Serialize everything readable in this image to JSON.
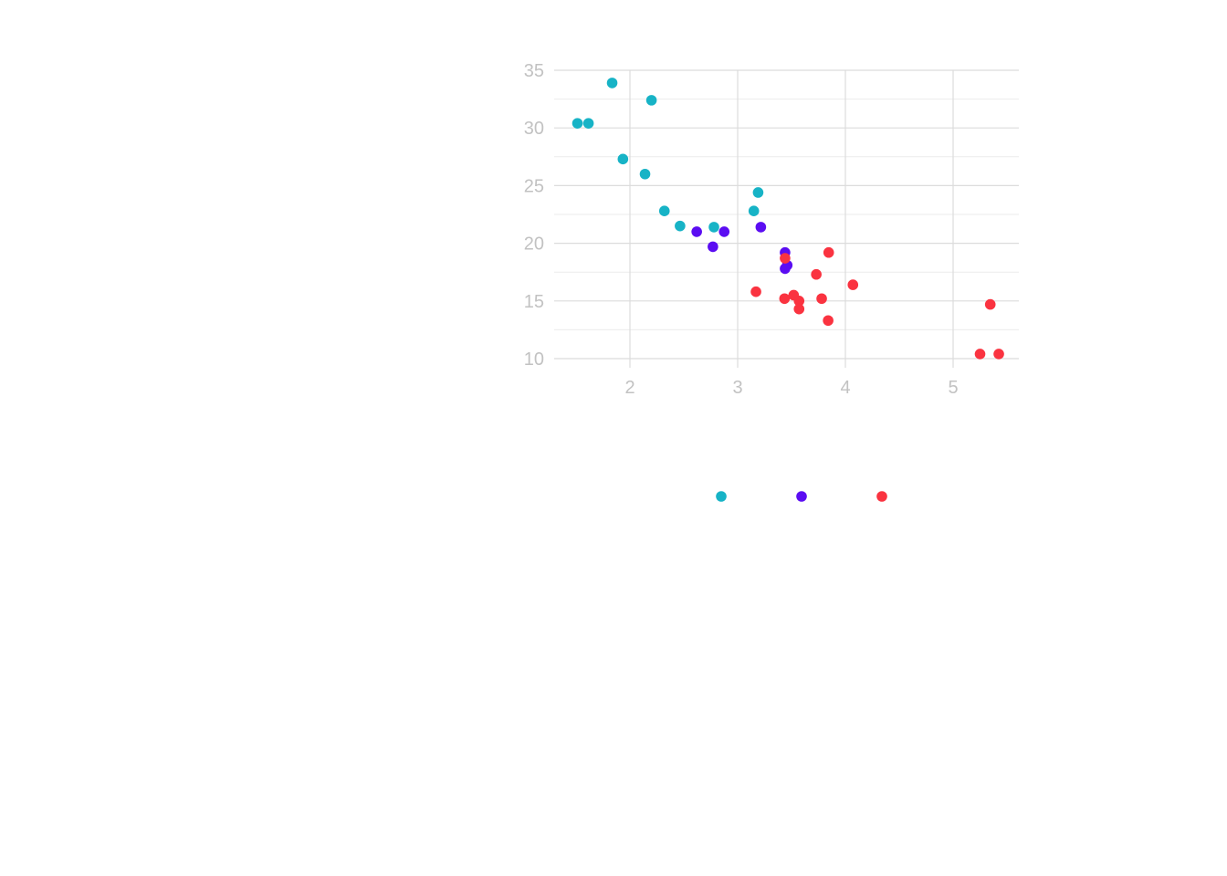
{
  "chart_data": {
    "type": "scatter",
    "title": "",
    "xlabel": "",
    "ylabel": "",
    "xlim": [
      1.3,
      5.6
    ],
    "ylim": [
      10,
      35
    ],
    "x_ticks": [
      2,
      3,
      4,
      5
    ],
    "y_ticks": [
      10,
      15,
      20,
      25,
      30,
      35
    ],
    "x_tick_labels": [
      "2",
      "3",
      "4",
      "5"
    ],
    "y_tick_labels": [
      "10",
      "15",
      "20",
      "25",
      "30",
      "35"
    ],
    "grid": true,
    "legend": "bottom",
    "series": [
      {
        "color": "#17b3c6",
        "points": [
          [
            1.513,
            30.4
          ],
          [
            1.615,
            30.4
          ],
          [
            1.835,
            33.9
          ],
          [
            1.935,
            27.3
          ],
          [
            2.14,
            26.0
          ],
          [
            2.2,
            32.4
          ],
          [
            2.32,
            22.8
          ],
          [
            2.465,
            21.5
          ],
          [
            2.78,
            21.4
          ],
          [
            3.15,
            22.8
          ],
          [
            3.19,
            24.4
          ]
        ]
      },
      {
        "color": "#5b0df2",
        "points": [
          [
            2.62,
            21.0
          ],
          [
            2.77,
            19.7
          ],
          [
            2.875,
            21.0
          ],
          [
            3.215,
            21.4
          ],
          [
            3.44,
            19.2
          ],
          [
            3.44,
            17.8
          ],
          [
            3.46,
            18.1
          ]
        ]
      },
      {
        "color": "#fa3340",
        "points": [
          [
            3.17,
            15.8
          ],
          [
            3.44,
            18.7
          ],
          [
            3.435,
            15.2
          ],
          [
            3.52,
            15.5
          ],
          [
            3.57,
            15.0
          ],
          [
            3.57,
            14.3
          ],
          [
            3.73,
            17.3
          ],
          [
            3.78,
            15.2
          ],
          [
            3.84,
            13.3
          ],
          [
            3.845,
            19.2
          ],
          [
            4.07,
            16.4
          ],
          [
            5.25,
            10.4
          ],
          [
            5.345,
            14.7
          ],
          [
            5.424,
            10.4
          ]
        ]
      }
    ]
  }
}
